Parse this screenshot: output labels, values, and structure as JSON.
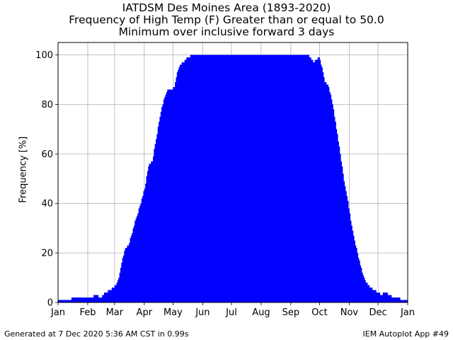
{
  "header": {
    "title_line1": "IATDSM Des Moines Area (1893-2020)",
    "title_line2": "Frequency of High Temp (F) Greater than or equal to 50.0",
    "title_line3": "Minimum over inclusive forward 3 days"
  },
  "footer": {
    "generated": "Generated at 7 Dec 2020 5:36 AM CST in 0.99s",
    "app": "IEM Autoplot App #49"
  },
  "colors": {
    "bars": "#0000ff",
    "grid": "#b0b0b0",
    "axis": "#000000"
  },
  "chart_data": {
    "type": "bar",
    "title": "IATDSM Des Moines Area (1893-2020)",
    "subtitle": "Frequency of High Temp (F) Greater than or equal to 50.0 / Minimum over inclusive forward 3 days",
    "xlabel": "",
    "ylabel": "Frequency [%]",
    "xlim": [
      1,
      366
    ],
    "ylim": [
      0,
      105
    ],
    "grid": true,
    "x_ticks": [
      {
        "label": "Jan",
        "day": 1
      },
      {
        "label": "Feb",
        "day": 32
      },
      {
        "label": "Mar",
        "day": 60
      },
      {
        "label": "Apr",
        "day": 91
      },
      {
        "label": "May",
        "day": 121
      },
      {
        "label": "Jun",
        "day": 152
      },
      {
        "label": "Jul",
        "day": 182
      },
      {
        "label": "Aug",
        "day": 213
      },
      {
        "label": "Sep",
        "day": 244
      },
      {
        "label": "Oct",
        "day": 274
      },
      {
        "label": "Nov",
        "day": 305
      },
      {
        "label": "Dec",
        "day": 335
      },
      {
        "label": "Jan",
        "day": 366
      }
    ],
    "y_ticks": [
      0,
      20,
      40,
      60,
      80,
      100
    ],
    "series": [
      {
        "name": "",
        "color": "#0000ff",
        "points": [
          [
            1,
            1
          ],
          [
            10,
            1
          ],
          [
            15,
            1.5
          ],
          [
            20,
            2
          ],
          [
            25,
            2
          ],
          [
            30,
            2
          ],
          [
            35,
            2
          ],
          [
            40,
            3
          ],
          [
            45,
            2
          ],
          [
            50,
            4
          ],
          [
            55,
            5
          ],
          [
            58,
            6
          ],
          [
            61,
            7
          ],
          [
            64,
            10
          ],
          [
            67,
            16
          ],
          [
            70,
            21
          ],
          [
            74,
            23
          ],
          [
            78,
            28
          ],
          [
            82,
            34
          ],
          [
            87,
            40
          ],
          [
            91,
            46
          ],
          [
            95,
            55
          ],
          [
            99,
            57
          ],
          [
            103,
            66
          ],
          [
            107,
            75
          ],
          [
            111,
            82
          ],
          [
            115,
            86
          ],
          [
            119,
            86
          ],
          [
            122,
            87
          ],
          [
            125,
            93
          ],
          [
            128,
            96
          ],
          [
            132,
            97
          ],
          [
            136,
            99
          ],
          [
            142,
            100
          ],
          [
            150,
            100
          ],
          [
            260,
            100
          ],
          [
            264,
            99
          ],
          [
            267,
            97
          ],
          [
            270,
            98
          ],
          [
            273,
            99
          ],
          [
            276,
            95
          ],
          [
            279,
            89
          ],
          [
            283,
            87
          ],
          [
            287,
            80
          ],
          [
            291,
            70
          ],
          [
            295,
            60
          ],
          [
            299,
            49
          ],
          [
            302,
            43
          ],
          [
            306,
            33
          ],
          [
            310,
            25
          ],
          [
            314,
            18
          ],
          [
            318,
            12
          ],
          [
            322,
            8
          ],
          [
            326,
            6
          ],
          [
            330,
            5
          ],
          [
            334,
            4
          ],
          [
            338,
            3
          ],
          [
            342,
            4
          ],
          [
            346,
            3
          ],
          [
            350,
            2
          ],
          [
            355,
            2
          ],
          [
            360,
            1
          ],
          [
            366,
            1
          ]
        ]
      }
    ]
  }
}
